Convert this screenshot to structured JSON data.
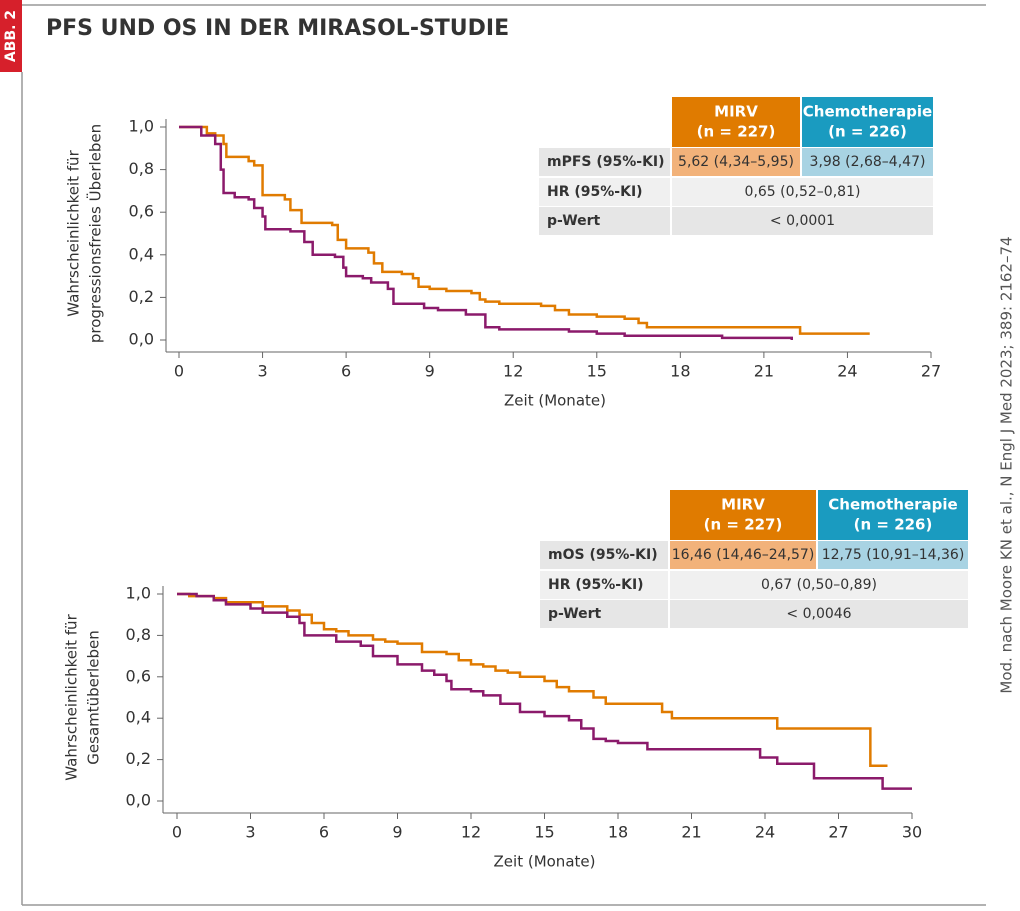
{
  "header": {
    "badge": "ABB. 2",
    "title": "PFS UND OS IN DER MIRASOL-STUDIE"
  },
  "source": "Mod. nach Moore KN et al., N Engl J Med 2023; 389: 2162–74",
  "chart_data": [
    {
      "type": "line",
      "step": true,
      "ylabel": [
        "Wahrscheinlichkeit für",
        "progressionsfreies Überleben"
      ],
      "xlabel": "Zeit (Monate)",
      "xlim": [
        0,
        27
      ],
      "xticks": [
        0,
        3,
        6,
        9,
        12,
        15,
        18,
        21,
        24,
        27
      ],
      "ylim": [
        0,
        1
      ],
      "yticks": [
        {
          "value": 0,
          "label": "0,0"
        },
        {
          "value": 0.2,
          "label": "0,2"
        },
        {
          "value": 0.4,
          "label": "0,4"
        },
        {
          "value": 0.6,
          "label": "0,6"
        },
        {
          "value": 0.8,
          "label": "0,8"
        },
        {
          "value": 1,
          "label": "1,0"
        }
      ],
      "series": [
        {
          "name": "MIRV",
          "color": "#e07b00",
          "header_color": "#e07b00",
          "cell_color": "#f2b27a",
          "x": [
            0,
            0.5,
            1,
            1.3,
            1.6,
            1.7,
            2.5,
            2.7,
            3,
            3.8,
            4,
            4.4,
            5.5,
            5.7,
            6,
            6.8,
            7,
            7.3,
            8,
            8.4,
            8.6,
            9,
            9.6,
            10.5,
            10.8,
            11,
            11.5,
            13,
            13.5,
            14,
            15,
            16,
            16.5,
            16.8,
            22.3,
            22.3,
            24.8
          ],
          "values": [
            1,
            1,
            0.97,
            0.96,
            0.92,
            0.86,
            0.84,
            0.82,
            0.68,
            0.66,
            0.61,
            0.55,
            0.54,
            0.47,
            0.43,
            0.41,
            0.36,
            0.32,
            0.31,
            0.29,
            0.25,
            0.24,
            0.23,
            0.22,
            0.19,
            0.18,
            0.17,
            0.16,
            0.14,
            0.12,
            0.11,
            0.1,
            0.08,
            0.06,
            0.06,
            0.03,
            0.03
          ]
        },
        {
          "name": "Chemotherapie",
          "color": "#8b1a6b",
          "header_color": "#1a9bc0",
          "cell_color": "#a8d3e3",
          "x": [
            0,
            0.5,
            0.8,
            1.3,
            1.5,
            1.6,
            2,
            2.5,
            2.7,
            3,
            3.1,
            4,
            4.5,
            4.8,
            5.6,
            5.9,
            6,
            6.6,
            6.9,
            7.5,
            7.7,
            8.5,
            8.8,
            9.3,
            10,
            10.3,
            11,
            11.5,
            14,
            15,
            16,
            19.5,
            22,
            22
          ],
          "values": [
            1,
            1,
            0.96,
            0.92,
            0.8,
            0.69,
            0.67,
            0.66,
            0.62,
            0.58,
            0.52,
            0.51,
            0.46,
            0.4,
            0.39,
            0.34,
            0.3,
            0.29,
            0.27,
            0.24,
            0.17,
            0.17,
            0.15,
            0.14,
            0.14,
            0.12,
            0.06,
            0.05,
            0.04,
            0.03,
            0.02,
            0.01,
            0.01,
            0
          ]
        }
      ],
      "table": {
        "header_n": [
          "(n = 227)",
          "(n = 226)"
        ],
        "rows": [
          {
            "label": "mPFS (95%-KI)",
            "values": [
              "5,62 (4,34–5,95)",
              "3,98 (2,68–4,47)"
            ]
          },
          {
            "label": "HR (95%-KI)",
            "value": "0,65 (0,52–0,81)"
          },
          {
            "label": "p-Wert",
            "value": "< 0,0001"
          }
        ]
      }
    },
    {
      "type": "line",
      "step": true,
      "ylabel": [
        "Wahrscheinlichkeit für",
        "Gesamtüberleben"
      ],
      "xlabel": "Zeit (Monate)",
      "xlim": [
        0,
        30
      ],
      "xticks": [
        0,
        3,
        6,
        9,
        12,
        15,
        18,
        21,
        24,
        27,
        30
      ],
      "ylim": [
        0,
        1
      ],
      "yticks": [
        {
          "value": 0,
          "label": "0,0"
        },
        {
          "value": 0.2,
          "label": "0,2"
        },
        {
          "value": 0.4,
          "label": "0,4"
        },
        {
          "value": 0.6,
          "label": "0,6"
        },
        {
          "value": 0.8,
          "label": "0,8"
        },
        {
          "value": 1,
          "label": "1,0"
        }
      ],
      "series": [
        {
          "name": "MIRV",
          "color": "#e07b00",
          "header_color": "#e07b00",
          "cell_color": "#f2b27a",
          "x": [
            0,
            0.5,
            1.5,
            2,
            3.5,
            4.5,
            5,
            5.5,
            6,
            6.5,
            7,
            8,
            8.5,
            9,
            10,
            11,
            11.5,
            12,
            12.5,
            13,
            13.5,
            14,
            15,
            15.5,
            16,
            17,
            17.5,
            19.5,
            19.8,
            20.2,
            24.5,
            24.5,
            28.3,
            28.3,
            29
          ],
          "values": [
            1,
            0.99,
            0.98,
            0.96,
            0.94,
            0.92,
            0.9,
            0.86,
            0.83,
            0.82,
            0.8,
            0.78,
            0.77,
            0.76,
            0.72,
            0.71,
            0.68,
            0.66,
            0.65,
            0.63,
            0.62,
            0.6,
            0.58,
            0.55,
            0.53,
            0.5,
            0.47,
            0.47,
            0.43,
            0.4,
            0.4,
            0.35,
            0.35,
            0.17,
            0.17
          ]
        },
        {
          "name": "Chemotherapie",
          "color": "#8b1a6b",
          "header_color": "#1a9bc0",
          "cell_color": "#a8d3e3",
          "x": [
            0,
            0.8,
            1.5,
            2,
            3,
            3.5,
            4.5,
            5,
            5.2,
            6.3,
            6.5,
            7.5,
            8,
            9,
            9,
            10,
            10.5,
            11,
            11.2,
            12,
            12.5,
            13.2,
            14,
            15,
            16,
            16.5,
            17,
            17.5,
            18,
            19,
            19.2,
            23.8,
            23.8,
            24.5,
            26,
            26,
            28,
            28.8,
            30
          ],
          "values": [
            1,
            0.99,
            0.97,
            0.95,
            0.93,
            0.91,
            0.89,
            0.86,
            0.8,
            0.8,
            0.77,
            0.75,
            0.7,
            0.68,
            0.66,
            0.63,
            0.61,
            0.58,
            0.54,
            0.53,
            0.51,
            0.47,
            0.43,
            0.41,
            0.39,
            0.35,
            0.3,
            0.29,
            0.28,
            0.28,
            0.25,
            0.25,
            0.21,
            0.18,
            0.18,
            0.11,
            0.11,
            0.06,
            0.06
          ]
        }
      ],
      "table": {
        "header_n": [
          "(n = 227)",
          "(n = 226)"
        ],
        "rows": [
          {
            "label": "mOS (95%-KI)",
            "values": [
              "16,46 (14,46–24,57)",
              "12,75 (10,91–14,36)"
            ]
          },
          {
            "label": "HR (95%-KI)",
            "value": "0,67 (0,50–0,89)"
          },
          {
            "label": "p-Wert",
            "value": "< 0,0046"
          }
        ]
      }
    }
  ]
}
